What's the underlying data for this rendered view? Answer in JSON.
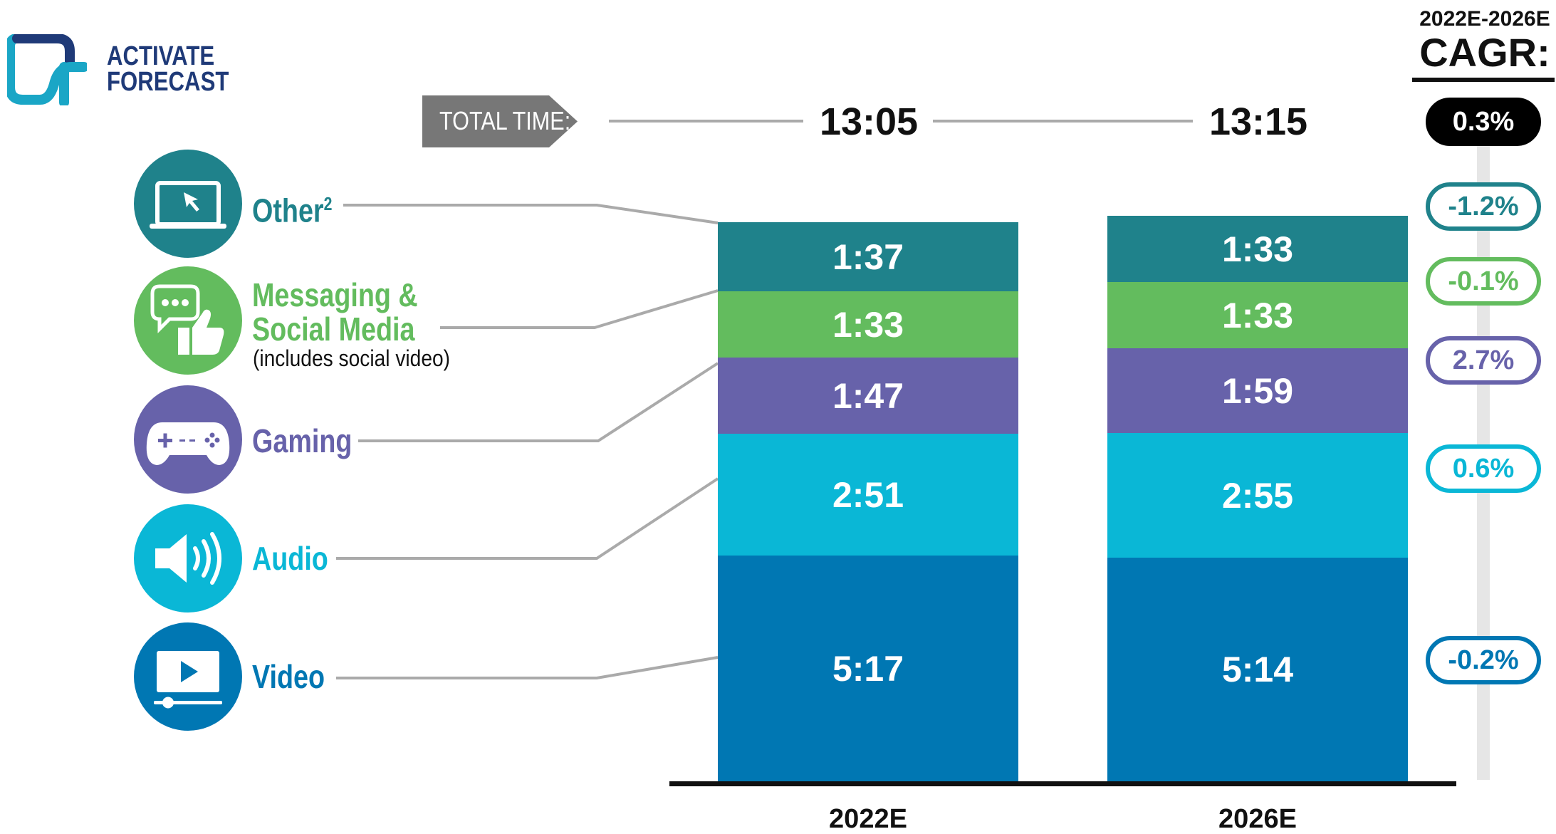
{
  "brand": {
    "line1": "ACTIVATE",
    "line2": "FORECAST",
    "color": "#1f3a78",
    "accent": "#1aa6c6"
  },
  "total_time": {
    "label": "TOTAL TIME:",
    "values": [
      "13:05",
      "13:15"
    ],
    "box_color": "#777777"
  },
  "cagr": {
    "years": "2022E-2026E",
    "title": "CAGR:",
    "total": "0.3%"
  },
  "categories": [
    {
      "name": "Other",
      "superscript": "2",
      "icon": "laptop-cursor-icon",
      "color": "#1f828b",
      "cagr": "-1.2%"
    },
    {
      "name_line1": "Messaging &",
      "name_line2": "Social Media",
      "note": "(includes social video)",
      "icon": "chat-thumbs-up-icon",
      "color": "#63bc5e",
      "cagr": "-0.1%"
    },
    {
      "name": "Gaming",
      "icon": "gamepad-icon",
      "color": "#6762aa",
      "cagr": "2.7%"
    },
    {
      "name": "Audio",
      "icon": "speaker-icon",
      "color": "#0ab7d6",
      "cagr": "0.6%"
    },
    {
      "name": "Video",
      "icon": "video-player-icon",
      "color": "#0077b3",
      "cagr": "-0.2%"
    }
  ],
  "chart_data": {
    "type": "bar",
    "stacked": true,
    "categories": [
      "2022E",
      "2026E"
    ],
    "series": [
      {
        "name": "Video",
        "values": [
          "5:17",
          "5:14"
        ],
        "minutes": [
          317,
          314
        ],
        "color": "#0077b3"
      },
      {
        "name": "Audio",
        "values": [
          "2:51",
          "2:55"
        ],
        "minutes": [
          171,
          175
        ],
        "color": "#0ab7d6"
      },
      {
        "name": "Gaming",
        "values": [
          "1:47",
          "1:59"
        ],
        "minutes": [
          107,
          119
        ],
        "color": "#6762aa"
      },
      {
        "name": "Messaging & Social Media",
        "values": [
          "1:33",
          "1:33"
        ],
        "minutes": [
          93,
          93
        ],
        "color": "#63bc5e"
      },
      {
        "name": "Other",
        "values": [
          "1:37",
          "1:33"
        ],
        "minutes": [
          97,
          93
        ],
        "color": "#1f828b"
      }
    ],
    "totals": [
      "13:05",
      "13:15"
    ]
  }
}
